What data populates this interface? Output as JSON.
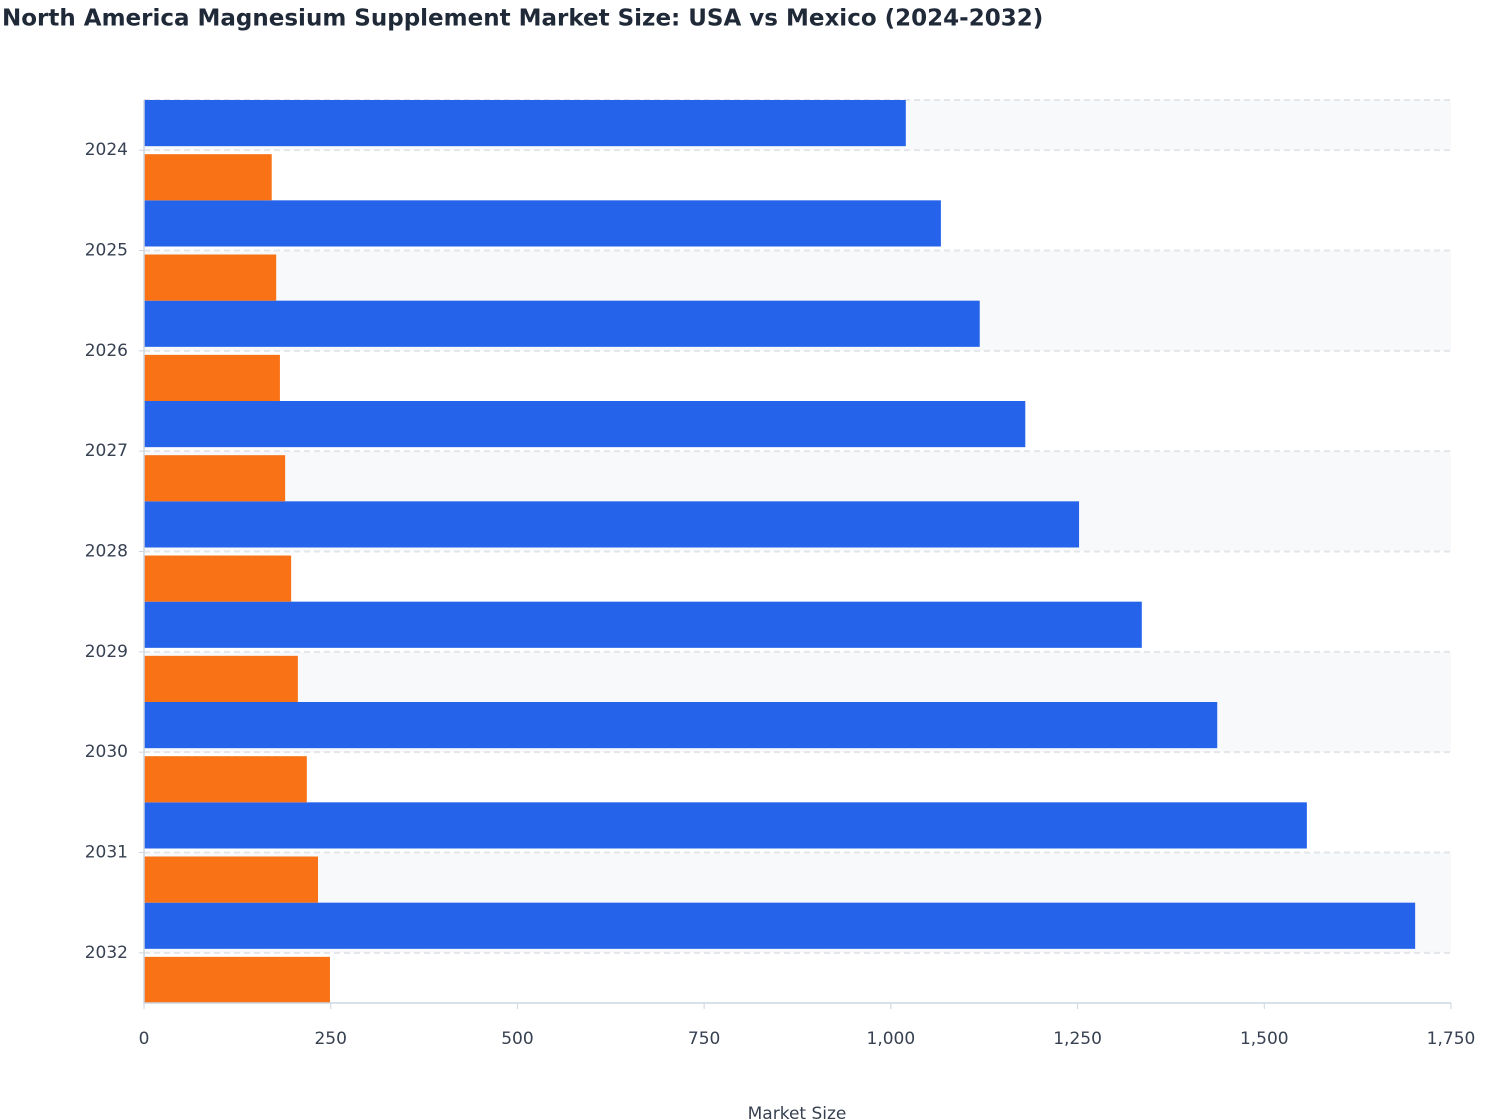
{
  "chart_data": {
    "type": "hbar",
    "title": "North America Magnesium Supplement Market Size: USA vs Mexico (2024-2032)",
    "x_label": "Market Size",
    "categories": [
      "2024",
      "2025",
      "2026",
      "2027",
      "2028",
      "2029",
      "2030",
      "2031",
      "2032"
    ],
    "series": [
      {
        "color": "#2563eb",
        "values": [
          1020,
          1067,
          1119,
          1180,
          1252,
          1336,
          1437,
          1557,
          1702
        ]
      },
      {
        "color": "#f97316",
        "values": [
          171,
          177,
          182,
          189,
          197,
          206,
          218,
          233,
          249
        ]
      }
    ],
    "xlim": [
      0,
      1750
    ],
    "xticks": [
      0,
      250,
      500,
      750,
      {
        "value": 1000,
        "label": "1,000"
      },
      {
        "value": 1250,
        "label": "1,250"
      },
      {
        "value": 1500,
        "label": "1,500"
      },
      {
        "value": 1750,
        "label": "1,750"
      }
    ],
    "grid": true
  }
}
